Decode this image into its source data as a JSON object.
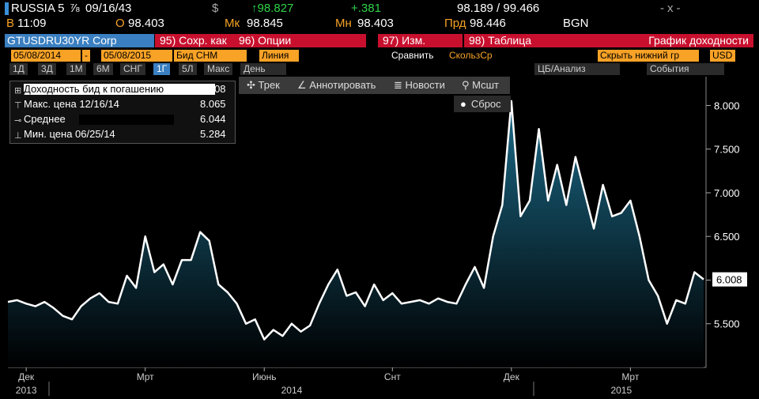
{
  "header": {
    "ticker": "RUSSIA 5",
    "coupon": "⅞",
    "maturity": "09/16/43",
    "currency": "$",
    "last": "↑98.827",
    "change": "+.381",
    "bid_ask": "98.189 / 99.466",
    "menu": "-x-",
    "time_label": "B",
    "time": "11:09",
    "open_label": "O",
    "open": "98.403",
    "high_label": "Мк",
    "high": "98.845",
    "low_label": "Мн",
    "low": "98.403",
    "prev_label": "Прд",
    "prev": "98.446",
    "source": "BGN"
  },
  "toolbar": {
    "security": "GTUSDRU30YR Corp",
    "buttons": [
      "95) Сохр. как",
      "96) Опции",
      "97) Изм.",
      "98) Таблица"
    ],
    "title": "График доходности"
  },
  "settings": {
    "start": "05/08/2014",
    "dash": "-",
    "end": "05/08/2015",
    "field": "Бид СНМ",
    "style": "Линия",
    "compare": "Сравнить",
    "moving_avg": "СкользСр",
    "hide": "Скрыть нижний гр",
    "currency": "USD"
  },
  "periods": {
    "buttons": [
      "1Д",
      "3Д",
      "1М",
      "6М",
      "СНГ",
      "1Г",
      "5Л",
      "Макс"
    ],
    "frequency": "День",
    "analysis": "ЦБ/Анализ",
    "events": "События"
  },
  "chart_tools": [
    "Трек",
    "Аннотировать",
    "Новости",
    "Мсшт"
  ],
  "reset": "Сброс",
  "chart_data": {
    "type": "area",
    "series": [
      {
        "name": "Доходность бид к погашению",
        "color": "#ffffff",
        "values": [
          5.75,
          5.77,
          5.73,
          5.7,
          5.75,
          5.68,
          5.59,
          5.55,
          5.7,
          5.79,
          5.85,
          5.75,
          5.73,
          6.05,
          5.91,
          6.5,
          6.09,
          6.18,
          5.95,
          6.23,
          6.23,
          6.55,
          6.45,
          5.95,
          5.86,
          5.73,
          5.5,
          5.55,
          5.32,
          5.43,
          5.36,
          5.5,
          5.41,
          5.48,
          5.73,
          5.95,
          6.12,
          5.82,
          5.86,
          5.7,
          5.95,
          5.77,
          5.85,
          5.73,
          5.75,
          5.77,
          5.73,
          5.79,
          5.75,
          5.73,
          5.95,
          6.15,
          5.91,
          6.5,
          6.86,
          8.05,
          6.73,
          6.91,
          7.73,
          6.91,
          7.32,
          6.86,
          7.41,
          7.0,
          6.59,
          7.09,
          6.73,
          6.77,
          6.91,
          6.5,
          6.0,
          5.82,
          5.5,
          5.77,
          5.73,
          6.09,
          6.008
        ]
      }
    ],
    "fill_color": "#1b6a88",
    "stats": [
      {
        "label": "Макс. цена 12/16/14",
        "value": 8.065
      },
      {
        "label": "Среднее",
        "value": 6.044
      },
      {
        "label": "Мин. цена 06/25/14",
        "value": 5.284
      }
    ],
    "categories": [
      null,
      null,
      "Дек",
      null,
      null,
      null,
      null,
      null,
      null,
      null,
      null,
      null,
      null,
      null,
      null,
      "Мрт",
      null,
      null,
      null,
      null,
      null,
      null,
      null,
      null,
      null,
      null,
      null,
      null,
      "Июнь",
      null,
      null,
      null,
      null,
      null,
      null,
      null,
      null,
      null,
      null,
      null,
      null,
      null,
      "Снт",
      null,
      null,
      null,
      null,
      null,
      null,
      null,
      null,
      null,
      null,
      null,
      null,
      "Дек",
      null,
      null,
      null,
      null,
      null,
      null,
      null,
      null,
      null,
      null,
      null,
      null,
      "Мрт",
      null,
      null,
      null,
      null,
      null,
      null,
      null,
      null
    ],
    "year_categories": [
      null,
      null,
      "2013",
      null,
      null,
      null,
      null,
      null,
      null,
      null,
      null,
      null,
      null,
      null,
      null,
      null,
      null,
      null,
      null,
      null,
      null,
      null,
      null,
      null,
      null,
      null,
      null,
      null,
      null,
      null,
      null,
      "2014",
      null,
      null,
      null,
      null,
      null,
      null,
      null,
      null,
      null,
      null,
      null,
      null,
      null,
      null,
      null,
      null,
      null,
      null,
      null,
      null,
      null,
      null,
      null,
      null,
      null,
      null,
      null,
      null,
      null,
      null,
      null,
      null,
      null,
      null,
      null,
      "2015",
      null,
      null,
      null,
      null,
      null,
      null,
      null,
      null,
      null
    ],
    "ylim": [
      5.0,
      8.33
    ],
    "yticks": [
      {
        "value": 5.5,
        "label": "5.500"
      },
      {
        "value": 6,
        "label": "6.000"
      },
      {
        "value": 6.5,
        "label": "6.500"
      },
      {
        "value": 7,
        "label": "7.000"
      },
      {
        "value": 7.5,
        "label": "7.500"
      },
      {
        "value": 8,
        "label": "8.000"
      }
    ],
    "grid": false
  }
}
